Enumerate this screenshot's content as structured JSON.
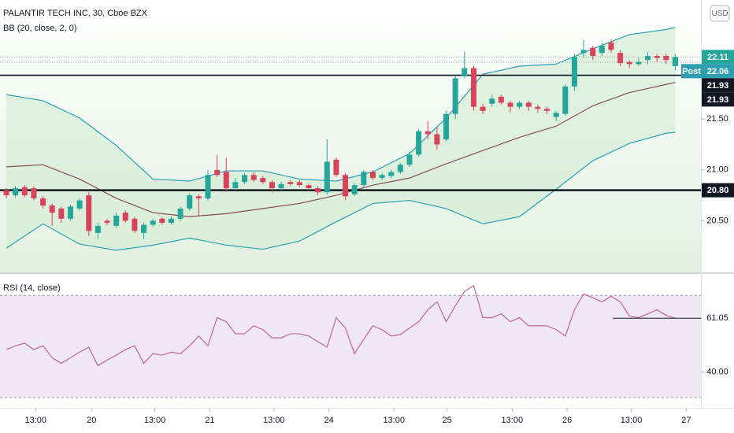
{
  "chart_data": {
    "type": "candlestick",
    "title": "PALANTIR TECH INC, 30, Cboe BZX",
    "indicator_label": "BB (20, close, 2, 0)",
    "currency": "USD",
    "up_color": "#26a69a",
    "down_color": "#d8435c",
    "open": [
      20.8,
      20.75,
      20.83,
      20.82,
      20.72,
      20.65,
      20.62,
      20.52,
      20.62,
      20.75,
      20.38,
      20.5,
      20.45,
      20.58,
      20.52,
      20.38,
      20.46,
      20.52,
      20.48,
      20.52,
      20.62,
      20.74,
      20.72,
      21.0,
      20.98,
      20.82,
      20.88,
      20.95,
      20.92,
      20.88,
      20.82,
      20.88,
      20.88,
      20.85,
      20.82,
      20.78,
      21.1,
      20.95,
      20.76,
      20.85,
      20.98,
      20.92,
      20.94,
      20.98,
      21.05,
      21.15,
      21.38,
      21.35,
      21.3,
      21.55,
      21.92,
      22.0,
      21.62,
      21.65,
      21.72,
      21.66,
      21.62,
      21.66,
      21.62,
      21.6,
      21.52,
      21.55,
      21.82,
      22.15,
      22.2,
      22.15,
      22.25,
      22.15,
      22.06,
      22.04,
      22.08,
      22.12,
      22.12,
      22.02
    ],
    "high": [
      20.82,
      20.84,
      20.85,
      20.84,
      20.74,
      20.67,
      20.64,
      20.66,
      20.72,
      20.78,
      20.48,
      20.52,
      20.58,
      20.6,
      20.54,
      20.48,
      20.52,
      20.54,
      20.54,
      20.64,
      20.77,
      20.76,
      21.0,
      21.15,
      21.12,
      20.92,
      20.97,
      20.98,
      20.94,
      20.9,
      20.88,
      20.9,
      20.9,
      20.87,
      20.84,
      21.3,
      21.12,
      20.97,
      20.87,
      21.0,
      21.0,
      20.97,
      21.0,
      21.07,
      21.18,
      21.4,
      21.48,
      21.42,
      21.58,
      21.93,
      22.16,
      22.02,
      21.65,
      21.74,
      21.74,
      21.68,
      21.68,
      21.68,
      21.64,
      21.62,
      21.58,
      21.84,
      22.14,
      22.28,
      22.22,
      22.25,
      22.28,
      22.18,
      22.08,
      22.1,
      22.16,
      22.14,
      22.14,
      22.14
    ],
    "low": [
      20.72,
      20.73,
      20.73,
      20.7,
      20.62,
      20.45,
      20.48,
      20.5,
      20.6,
      20.35,
      20.32,
      20.46,
      20.43,
      20.48,
      20.38,
      20.32,
      20.44,
      20.46,
      20.46,
      20.5,
      20.6,
      20.55,
      20.7,
      20.93,
      20.78,
      20.8,
      20.86,
      20.88,
      20.86,
      20.78,
      20.8,
      20.84,
      20.83,
      20.8,
      20.75,
      20.76,
      20.93,
      20.7,
      20.74,
      20.83,
      20.9,
      20.9,
      20.92,
      20.96,
      21.03,
      21.13,
      21.3,
      21.2,
      21.28,
      21.5,
      21.9,
      21.58,
      21.55,
      21.62,
      21.64,
      21.56,
      21.6,
      21.58,
      21.56,
      21.55,
      21.48,
      21.53,
      21.78,
      22.1,
      22.08,
      22.12,
      22.15,
      22.02,
      22.0,
      22.02,
      22.04,
      22.06,
      22.04,
      21.98
    ],
    "close": [
      20.75,
      20.82,
      20.75,
      20.72,
      20.65,
      20.58,
      20.52,
      20.64,
      20.7,
      20.4,
      20.45,
      20.48,
      20.55,
      20.5,
      20.4,
      20.46,
      20.5,
      20.48,
      20.52,
      20.62,
      20.75,
      20.72,
      20.95,
      20.95,
      20.82,
      20.88,
      20.95,
      20.9,
      20.88,
      20.82,
      20.86,
      20.86,
      20.85,
      20.82,
      20.78,
      21.08,
      20.95,
      20.74,
      20.85,
      20.98,
      20.92,
      20.95,
      20.98,
      21.05,
      21.15,
      21.38,
      21.35,
      21.25,
      21.55,
      21.9,
      22.0,
      21.62,
      21.58,
      21.7,
      21.66,
      21.62,
      21.66,
      21.62,
      21.6,
      21.58,
      21.56,
      21.82,
      22.11,
      22.18,
      22.12,
      22.22,
      22.18,
      22.05,
      22.04,
      22.06,
      22.12,
      22.1,
      22.08,
      22.11
    ],
    "bands": [
      {
        "color": "#2b9fb3",
        "x": [
          0,
          4,
          8,
          12,
          16,
          20,
          24,
          28,
          32,
          36,
          40,
          44,
          48,
          52,
          56,
          60,
          64,
          68,
          72,
          73
        ],
        "values": [
          21.74,
          21.68,
          21.51,
          21.24,
          20.91,
          20.89,
          20.99,
          20.99,
          20.91,
          20.89,
          20.98,
          21.16,
          21.51,
          21.94,
          22.02,
          22.04,
          22.19,
          22.33,
          22.38,
          22.4
        ]
      },
      {
        "color": "#8a4b55",
        "x": [
          0,
          4,
          8,
          12,
          16,
          20,
          24,
          28,
          32,
          36,
          40,
          44,
          48,
          52,
          56,
          60,
          64,
          68,
          72,
          73
        ],
        "values": [
          21.03,
          21.05,
          20.91,
          20.72,
          20.58,
          20.54,
          20.57,
          20.62,
          20.67,
          20.75,
          20.85,
          20.92,
          21.06,
          21.19,
          21.32,
          21.43,
          21.63,
          21.76,
          21.84,
          21.86
        ]
      },
      {
        "color": "#2b9fb3",
        "x": [
          0,
          4,
          8,
          12,
          16,
          20,
          24,
          28,
          32,
          36,
          40,
          44,
          48,
          52,
          56,
          60,
          64,
          68,
          72,
          73
        ],
        "values": [
          20.23,
          20.47,
          20.27,
          20.21,
          20.26,
          20.33,
          20.26,
          20.22,
          20.3,
          20.49,
          20.67,
          20.7,
          20.62,
          20.47,
          20.54,
          20.81,
          21.09,
          21.26,
          21.36,
          21.37
        ]
      }
    ],
    "band_fill": "#d5ecd6",
    "xlim": [
      -0.69,
      75.8
    ],
    "xticks": [
      {
        "value": 3.2,
        "label": "13:00"
      },
      {
        "value": 9.3,
        "label": "20"
      },
      {
        "value": 16.2,
        "label": "13:00"
      },
      {
        "value": 22.2,
        "label": "21"
      },
      {
        "value": 29.2,
        "label": "13:00"
      },
      {
        "value": 35.2,
        "label": "24"
      },
      {
        "value": 42.3,
        "label": "13:00"
      },
      {
        "value": 48.1,
        "label": "25"
      },
      {
        "value": 55.2,
        "label": "13:00"
      },
      {
        "value": 61.2,
        "label": "26"
      },
      {
        "value": 68.2,
        "label": "13:00"
      },
      {
        "value": 74.2,
        "label": "27"
      }
    ],
    "ylim": [
      20.0,
      22.67
    ],
    "yticks": [
      {
        "value": 21.5,
        "label": "21.50"
      },
      {
        "value": 21.0,
        "label": "21.00"
      },
      {
        "value": 20.5,
        "label": "20.50"
      }
    ],
    "price_lines": [
      {
        "value": 22.11,
        "color": "#26a69a",
        "style": "dotted"
      },
      {
        "value": 22.06,
        "color": "#2e9fb0",
        "style": "dotted",
        "badge": "Post"
      },
      {
        "value": 21.93,
        "color": "#131722",
        "style": "solid"
      },
      {
        "value": 21.93,
        "color": "#131722",
        "style": "solid"
      },
      {
        "value": 20.8,
        "label": "20.80",
        "color": "#131722",
        "style": "thick"
      }
    ],
    "rsi": {
      "title": "RSI (14, close)",
      "color": "#c2668f",
      "values": [
        48.8,
        50.3,
        51.3,
        48.8,
        50.3,
        45.6,
        43.4,
        45.6,
        47.8,
        49.7,
        42.5,
        44.7,
        46.6,
        48.8,
        50.3,
        43.4,
        47.2,
        46.6,
        47.8,
        47.2,
        50.3,
        54.1,
        50.3,
        61.3,
        59.7,
        55.0,
        55.0,
        58.1,
        56.6,
        53.4,
        53.4,
        55.0,
        55.0,
        54.1,
        51.9,
        49.7,
        61.3,
        57.2,
        47.2,
        52.8,
        58.1,
        56.6,
        54.1,
        54.7,
        57.2,
        59.7,
        64.4,
        67.5,
        59.7,
        65.9,
        71.6,
        73.8,
        61.3,
        61.3,
        62.8,
        59.7,
        61.3,
        58.1,
        58.1,
        58.1,
        56.6,
        54.1,
        64.4,
        70.6,
        69.1,
        67.5,
        69.7,
        67.5,
        61.9,
        61.3,
        62.8,
        64.4,
        62.2,
        61.05
      ],
      "ylim": [
        26,
        78.4
      ],
      "yticks": [
        {
          "value": 40,
          "label": "40.00"
        }
      ],
      "levels": [
        70,
        30
      ],
      "band_fill": "#efe6f6"
    }
  }
}
